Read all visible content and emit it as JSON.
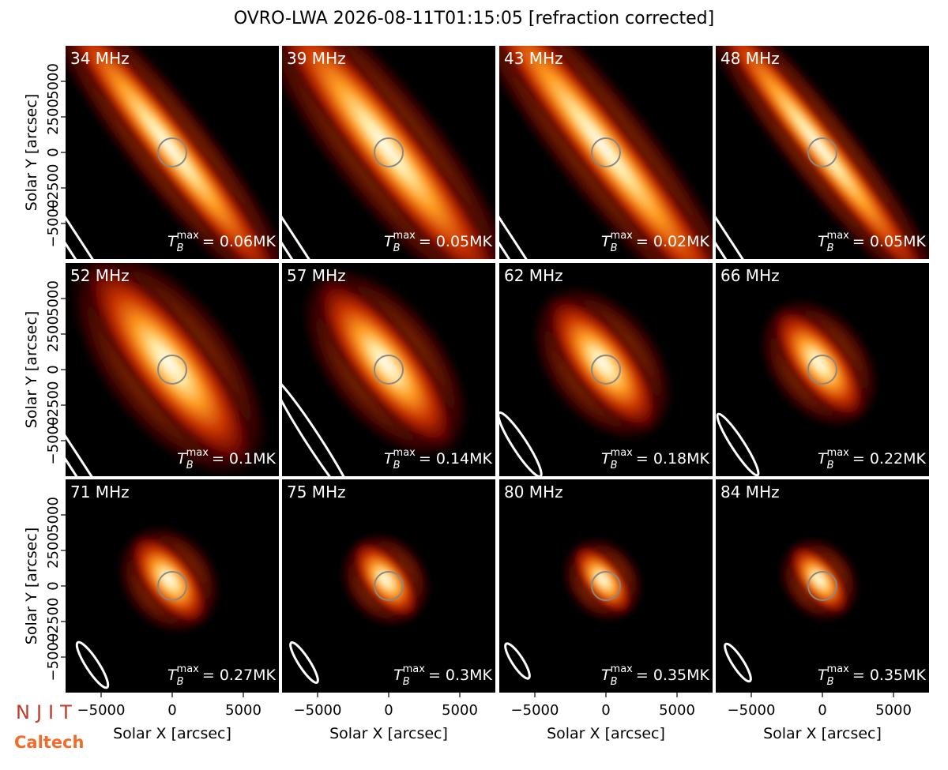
{
  "title": "OVRO-LWA 2026-08-11T01:15:05 [refraction corrected]",
  "logos": [
    "NJIT",
    "Caltech"
  ],
  "chart_data": [
    {
      "type": "image",
      "title": "34 MHz",
      "annotation": {
        "symbol": "T",
        "sub": "B",
        "sup": "max",
        "text": "= 0.06MK"
      },
      "xlim": [
        -7500,
        7500
      ],
      "ylim": [
        -7500,
        7500
      ],
      "ylabel": "Solar Y [arcsec]",
      "yticks": [
        {
          "value": -5000,
          "label": "−5000"
        },
        {
          "value": -2500,
          "label": "−2500"
        },
        0,
        2500,
        5000
      ]
    },
    {
      "type": "image",
      "title": "39 MHz",
      "annotation": {
        "symbol": "T",
        "sub": "B",
        "sup": "max",
        "text": "= 0.05MK"
      },
      "xlim": [
        -7500,
        7500
      ],
      "ylim": [
        -7500,
        7500
      ]
    },
    {
      "type": "image",
      "title": "43 MHz",
      "annotation": {
        "symbol": "T",
        "sub": "B",
        "sup": "max",
        "text": "= 0.02MK"
      },
      "xlim": [
        -7500,
        7500
      ],
      "ylim": [
        -7500,
        7500
      ]
    },
    {
      "type": "image",
      "title": "48 MHz",
      "annotation": {
        "symbol": "T",
        "sub": "B",
        "sup": "max",
        "text": "= 0.05MK"
      },
      "xlim": [
        -7500,
        7500
      ],
      "ylim": [
        -7500,
        7500
      ]
    },
    {
      "type": "image",
      "title": "52 MHz",
      "annotation": {
        "symbol": "T",
        "sub": "B",
        "sup": "max",
        "text": "= 0.1MK"
      },
      "xlim": [
        -7500,
        7500
      ],
      "ylim": [
        -7500,
        7500
      ],
      "ylabel": "Solar Y [arcsec]",
      "yticks": [
        {
          "value": -5000,
          "label": "−5000"
        },
        {
          "value": -2500,
          "label": "−2500"
        },
        0,
        2500,
        5000
      ]
    },
    {
      "type": "image",
      "title": "57 MHz",
      "annotation": {
        "symbol": "T",
        "sub": "B",
        "sup": "max",
        "text": "= 0.14MK"
      },
      "xlim": [
        -7500,
        7500
      ],
      "ylim": [
        -7500,
        7500
      ]
    },
    {
      "type": "image",
      "title": "62 MHz",
      "annotation": {
        "symbol": "T",
        "sub": "B",
        "sup": "max",
        "text": "= 0.18MK"
      },
      "xlim": [
        -7500,
        7500
      ],
      "ylim": [
        -7500,
        7500
      ]
    },
    {
      "type": "image",
      "title": "66 MHz",
      "annotation": {
        "symbol": "T",
        "sub": "B",
        "sup": "max",
        "text": "= 0.22MK"
      },
      "xlim": [
        -7500,
        7500
      ],
      "ylim": [
        -7500,
        7500
      ]
    },
    {
      "type": "image",
      "title": "71 MHz",
      "annotation": {
        "symbol": "T",
        "sub": "B",
        "sup": "max",
        "text": "= 0.27MK"
      },
      "xlim": [
        -7500,
        7500
      ],
      "ylim": [
        -7500,
        7500
      ],
      "ylabel": "Solar Y [arcsec]",
      "yticks": [
        {
          "value": -5000,
          "label": "−5000"
        },
        {
          "value": -2500,
          "label": "−2500"
        },
        0,
        2500,
        5000
      ],
      "xlabel": "Solar X [arcsec]",
      "xticks": [
        {
          "value": -5000,
          "label": "−5000"
        },
        0,
        5000
      ]
    },
    {
      "type": "image",
      "title": "75 MHz",
      "annotation": {
        "symbol": "T",
        "sub": "B",
        "sup": "max",
        "text": "= 0.3MK"
      },
      "xlim": [
        -7500,
        7500
      ],
      "ylim": [
        -7500,
        7500
      ],
      "xlabel": "Solar X [arcsec]",
      "xticks": [
        {
          "value": -5000,
          "label": "−5000"
        },
        0,
        5000
      ]
    },
    {
      "type": "image",
      "title": "80 MHz",
      "annotation": {
        "symbol": "T",
        "sub": "B",
        "sup": "max",
        "text": "= 0.35MK"
      },
      "xlim": [
        -7500,
        7500
      ],
      "ylim": [
        -7500,
        7500
      ],
      "xlabel": "Solar X [arcsec]",
      "xticks": [
        {
          "value": -5000,
          "label": "−5000"
        },
        0,
        5000
      ]
    },
    {
      "type": "image",
      "title": "84 MHz",
      "annotation": {
        "symbol": "T",
        "sub": "B",
        "sup": "max",
        "text": "= 0.35MK"
      },
      "xlim": [
        -7500,
        7500
      ],
      "ylim": [
        -7500,
        7500
      ],
      "xlabel": "Solar X [arcsec]",
      "xticks": [
        {
          "value": -5000,
          "label": "−5000"
        },
        0,
        5000
      ]
    }
  ]
}
